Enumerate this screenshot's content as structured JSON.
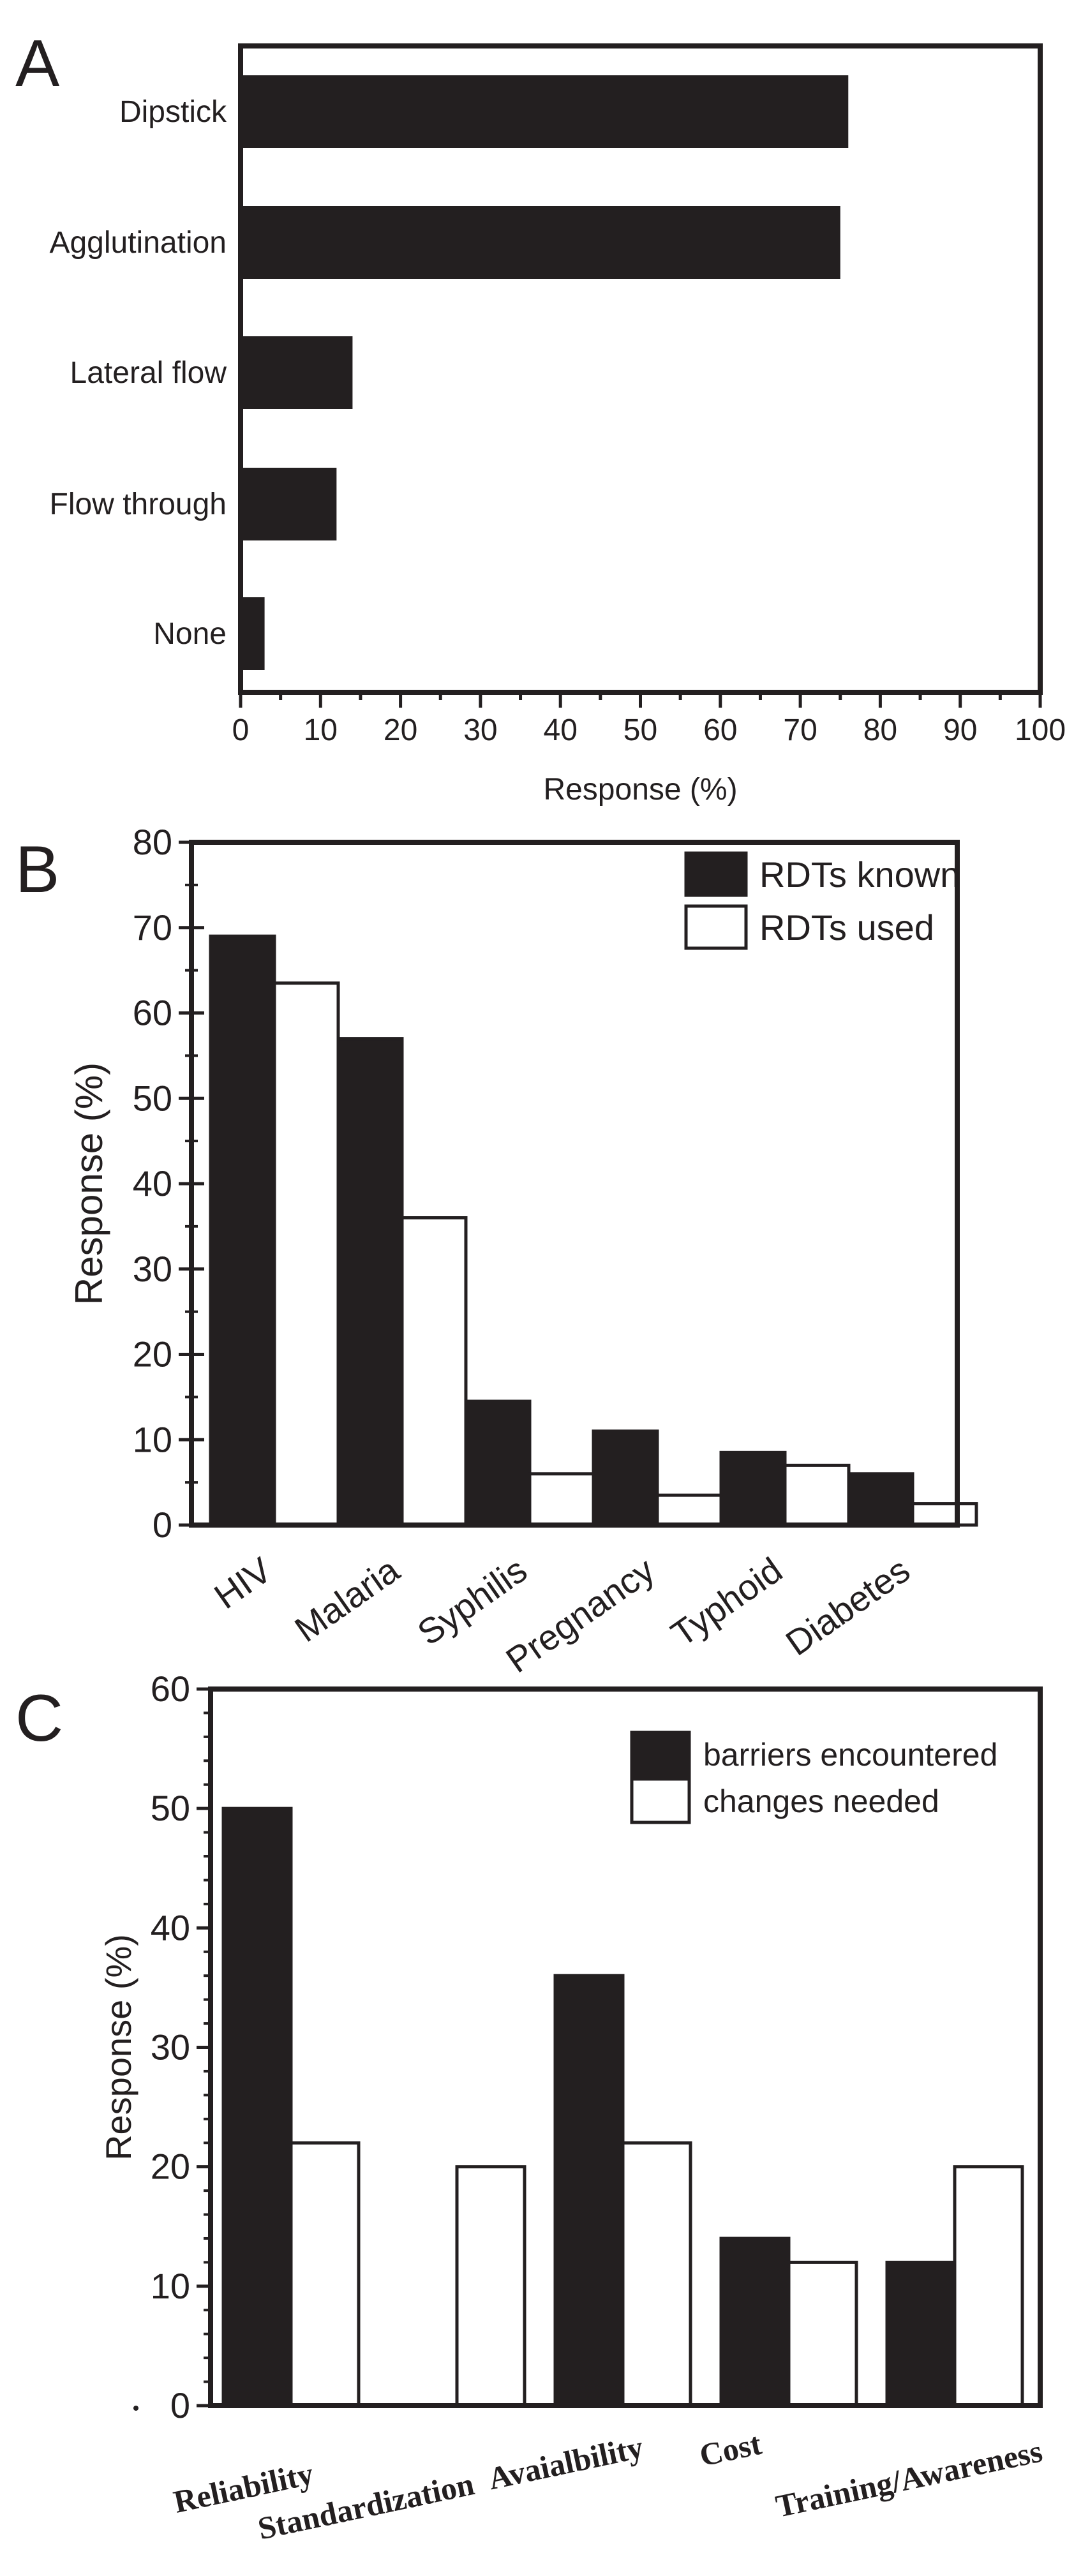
{
  "chart_data": [
    {
      "panel_label": "A",
      "type": "bar",
      "orientation": "horizontal",
      "categories": [
        "Dipstick",
        "Agglutination",
        "Lateral flow",
        "Flow through",
        "None"
      ],
      "values": [
        76,
        75,
        14,
        12,
        3
      ],
      "xlabel": "Response (%)",
      "ylabel": "",
      "xlim": [
        0,
        100
      ],
      "xticks": [
        "0",
        "10",
        "20",
        "30",
        "40",
        "50",
        "60",
        "70",
        "80",
        "90",
        "100"
      ],
      "grid": false,
      "colors": {
        "bar": "#231f20"
      }
    },
    {
      "panel_label": "B",
      "type": "bar",
      "orientation": "vertical",
      "categories": [
        "HIV",
        "Malaria",
        "Syphilis",
        "Pregnancy",
        "Typhoid",
        "Diabetes"
      ],
      "series": [
        {
          "name": "RDTs known",
          "values": [
            69,
            57,
            14.5,
            11,
            8.5,
            6
          ],
          "fill": "#231f20"
        },
        {
          "name": "RDTs used",
          "values": [
            63.5,
            36,
            6,
            3.5,
            7,
            2.5
          ],
          "fill": "#ffffff"
        }
      ],
      "xlabel": "",
      "ylabel": "Response (%)",
      "ylim": [
        0,
        80
      ],
      "yticks": [
        "0",
        "10",
        "20",
        "30",
        "40",
        "50",
        "60",
        "70",
        "80"
      ],
      "legend": "top-right",
      "grid": false
    },
    {
      "panel_label": "C",
      "type": "bar",
      "orientation": "vertical",
      "categories": [
        "Reliability",
        "Standardization",
        "Avaialbility",
        "Cost",
        "Training/Awareness"
      ],
      "series": [
        {
          "name": "barriers encountered",
          "values": [
            50,
            0,
            36,
            14,
            12
          ],
          "fill": "#231f20"
        },
        {
          "name": "changes needed",
          "values": [
            22,
            20,
            22,
            12,
            20
          ],
          "fill": "#ffffff"
        }
      ],
      "xlabel": "",
      "ylabel": "Response (%)",
      "ylim": [
        0,
        60
      ],
      "yticks": [
        "0",
        "10",
        "20",
        "30",
        "40",
        "50",
        "60"
      ],
      "legend": "top-right",
      "grid": false
    }
  ]
}
